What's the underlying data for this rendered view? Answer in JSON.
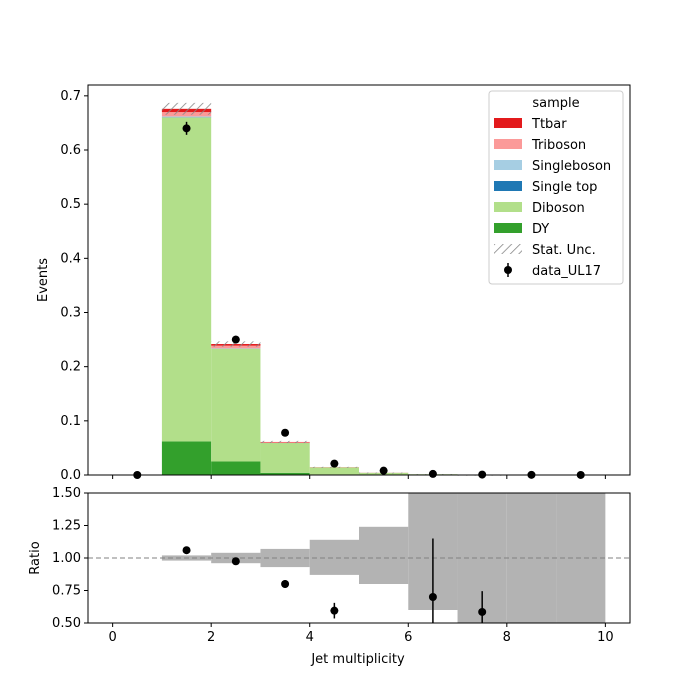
{
  "chart_data": {
    "type": "bar",
    "xlabel": "Jet multiplicity",
    "main_panel": {
      "ylabel": "Events",
      "xlim": [
        -0.5,
        10.5
      ],
      "ylim": [
        0,
        0.72
      ],
      "yticks": [
        "0.0",
        "0.1",
        "0.2",
        "0.3",
        "0.4",
        "0.5",
        "0.6",
        "0.7"
      ],
      "bin_edges": [
        0,
        1,
        2,
        3,
        4,
        5,
        6,
        7,
        8,
        9,
        10
      ],
      "stack": [
        {
          "name": "DY",
          "color": "#33a02c",
          "values": [
            0,
            0.062,
            0.025,
            0.004,
            0.001,
            0.0005,
            0.0002,
            0.0001,
            0,
            0
          ]
        },
        {
          "name": "Diboson",
          "color": "#b2df8a",
          "values": [
            0,
            0.598,
            0.208,
            0.055,
            0.013,
            0.0035,
            0.0012,
            0.0004,
            0,
            0
          ]
        },
        {
          "name": "Single top",
          "color": "#1f78b4",
          "values": [
            0,
            0.0005,
            0.0003,
            0.0001,
            0,
            0,
            0,
            0,
            0,
            0
          ]
        },
        {
          "name": "Singleboson",
          "color": "#a6cee3",
          "values": [
            0,
            0.0015,
            0.0005,
            0.0001,
            0,
            0,
            0,
            0,
            0,
            0
          ]
        },
        {
          "name": "Triboson",
          "color": "#fb9a99",
          "values": [
            0,
            0.008,
            0.005,
            0.001,
            0.0003,
            0.0001,
            0,
            0,
            0,
            0
          ]
        },
        {
          "name": "Ttbar",
          "color": "#e31a1c",
          "values": [
            0,
            0.006,
            0.003,
            0.0008,
            0.0002,
            0.0001,
            0,
            0,
            0,
            0
          ]
        }
      ],
      "stat_unc": [
        0,
        0.011,
        0.005,
        0.002,
        0.0006,
        0.0003,
        0.0002,
        0.0001,
        0,
        0
      ],
      "data": {
        "name": "data_UL17",
        "x": [
          0.5,
          1.5,
          2.5,
          3.5,
          4.5,
          5.5,
          6.5,
          7.5,
          8.5,
          9.5
        ],
        "y": [
          0,
          0.64,
          0.25,
          0.078,
          0.021,
          0.008,
          0.002,
          0.0008,
          0.0003,
          0.0001
        ],
        "yerr": [
          0,
          0.012,
          0.007,
          0.004,
          0.0025,
          0.0015,
          0.001,
          0.0006,
          0.0004,
          0.0002
        ]
      },
      "legend": {
        "title": "sample",
        "placement": "top-right",
        "entries": [
          {
            "label": "Ttbar",
            "kind": "patch",
            "color": "#e31a1c"
          },
          {
            "label": "Triboson",
            "kind": "patch",
            "color": "#fb9a99"
          },
          {
            "label": "Singleboson",
            "kind": "patch",
            "color": "#a6cee3"
          },
          {
            "label": "Single top",
            "kind": "patch",
            "color": "#1f78b4"
          },
          {
            "label": "Diboson",
            "kind": "patch",
            "color": "#b2df8a"
          },
          {
            "label": "DY",
            "kind": "patch",
            "color": "#33a02c"
          },
          {
            "label": "Stat. Unc.",
            "kind": "hatch",
            "color": "#888888"
          },
          {
            "label": "data_UL17",
            "kind": "errorbar",
            "color": "#000000"
          }
        ]
      }
    },
    "ratio_panel": {
      "ylabel": "Ratio",
      "ylim": [
        0.5,
        1.5
      ],
      "yticks": [
        "0.50",
        "0.75",
        "1.00",
        "1.25",
        "1.50"
      ],
      "reference_line": 1.0,
      "xticks": [
        "0",
        "2",
        "4",
        "6",
        "8",
        "10"
      ],
      "unc_band": {
        "color": "#b3b3b3",
        "low": [
          null,
          0.98,
          0.96,
          0.93,
          0.87,
          0.8,
          0.6,
          0.0,
          0.0,
          0.0
        ],
        "high": [
          null,
          1.02,
          1.04,
          1.07,
          1.14,
          1.24,
          2.0,
          2.0,
          2.0,
          2.0
        ]
      },
      "points": {
        "x": [
          1.5,
          2.5,
          3.5,
          4.5,
          6.5,
          7.5
        ],
        "y": [
          1.06,
          0.975,
          0.8,
          0.595,
          0.7,
          0.585
        ],
        "yerr": [
          0.015,
          0.02,
          0.03,
          0.06,
          0.45,
          0.16
        ]
      }
    }
  }
}
